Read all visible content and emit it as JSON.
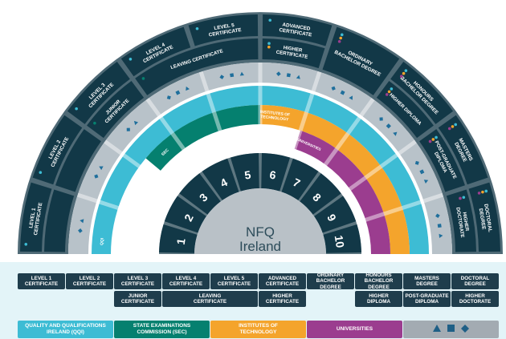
{
  "colors": {
    "dark": "#123847",
    "sep": "#4f6a76",
    "grey": "#b8c2c9",
    "disc": "#b9c1c7",
    "qqi": "#3dbcd4",
    "sec": "#05806f",
    "iot": "#f4a42c",
    "univ": "#9b3d8f",
    "symbol": "#1f6f9c",
    "panel": "#e3f4f8"
  },
  "center": {
    "title": "NFQ",
    "subtitle": "Ireland"
  },
  "levels": [
    "1",
    "2",
    "3",
    "4",
    "5",
    "6",
    "7",
    "8",
    "9",
    "10"
  ],
  "outer": [
    {
      "lines": [
        "LEVEL 1",
        "CERTIFICATE"
      ],
      "dots": [
        "#3dbcd4"
      ]
    },
    {
      "lines": [
        "LEVEL 2",
        "CERTIFICATE"
      ],
      "dots": [
        "#3dbcd4"
      ]
    },
    {
      "lines": [
        "LEVEL 3",
        "CERTIFICATE"
      ],
      "dots": [
        "#3dbcd4"
      ]
    },
    {
      "lines": [
        "LEVEL 4",
        "CERTIFICATE"
      ],
      "dots": [
        "#3dbcd4"
      ]
    },
    {
      "lines": [
        "LEVEL 5",
        "CERTIFICATE"
      ],
      "dots": [
        "#3dbcd4"
      ]
    },
    {
      "lines": [
        "ADVANCED",
        "CERTIFICATE"
      ],
      "dots": [
        "#3dbcd4"
      ]
    },
    {
      "lines": [
        "ORDINARY",
        "BACHELOR DEGREE"
      ],
      "dots": [
        "#3dbcd4",
        "#f4a42c",
        "#9b3d8f"
      ],
      "merged": true
    },
    {
      "lines": [
        "HONOURS",
        "BACHELOR DEGREE"
      ],
      "dots": [
        "#3dbcd4",
        "#f4a42c",
        "#9b3d8f"
      ]
    },
    {
      "lines": [
        "MASTERS",
        "DEGREE"
      ],
      "dots": [
        "#3dbcd4",
        "#f4a42c",
        "#9b3d8f"
      ]
    },
    {
      "lines": [
        "DOCTORAL",
        "DEGREE"
      ],
      "dots": [
        "#3dbcd4",
        "#f4a42c",
        "#9b3d8f"
      ]
    }
  ],
  "inner": [
    {
      "from": 1,
      "to": 1,
      "lines": [],
      "dots": []
    },
    {
      "from": 2,
      "to": 2,
      "lines": [],
      "dots": []
    },
    {
      "from": 3,
      "to": 3,
      "lines": [
        "JUNIOR",
        "CERTIFICATE"
      ],
      "dots": [
        "#05806f"
      ]
    },
    {
      "from": 4,
      "to": 5,
      "lines": [
        "LEAVING CERTIFICATE"
      ],
      "dots": [
        "#05806f"
      ]
    },
    {
      "from": 6,
      "to": 6,
      "lines": [
        "HIGHER",
        "CERTIFICATE"
      ],
      "dots": [
        "#3dbcd4",
        "#f4a42c"
      ]
    },
    {
      "from": 8,
      "to": 8,
      "lines": [
        "HIGHER DIPLOMA"
      ],
      "dots": [
        "#3dbcd4",
        "#f4a42c",
        "#9b3d8f"
      ]
    },
    {
      "from": 9,
      "to": 9,
      "lines": [
        "POST-GRADUATE",
        "DIPLOMA"
      ],
      "dots": [
        "#3dbcd4",
        "#f4a42c",
        "#9b3d8f"
      ]
    },
    {
      "from": 10,
      "to": 10,
      "lines": [
        "HIGHER",
        "DOCTORATE"
      ],
      "dots": [
        "#3dbcd4",
        "#9b3d8f"
      ]
    }
  ],
  "symbols": [
    [
      "triangle",
      "diamond"
    ],
    [
      "triangle",
      "diamond"
    ],
    [
      "triangle",
      "diamond"
    ],
    [
      "triangle",
      "square",
      "diamond"
    ],
    [
      "triangle",
      "square",
      "diamond"
    ],
    [
      "triangle",
      "square",
      "diamond"
    ],
    [
      "triangle",
      "square",
      "diamond"
    ],
    [
      "triangle",
      "square",
      "diamond"
    ],
    [
      "triangle",
      "square",
      "diamond"
    ],
    [
      "triangle",
      "square",
      "diamond"
    ]
  ],
  "bands": [
    {
      "name": "qqi",
      "label": "QQI",
      "from": 1,
      "to": 10,
      "color": "#3dbcd4"
    },
    {
      "name": "sec",
      "label": "SEC",
      "from": 3,
      "to": 5,
      "color": "#05806f"
    },
    {
      "name": "iot",
      "label": "INSTITUTES OF TECHNOLOGY",
      "from": 6,
      "to": 10,
      "color": "#f4a42c"
    },
    {
      "name": "univ",
      "label": "UNIVERSITIES",
      "from": 7,
      "to": 10,
      "color": "#9b3d8f"
    }
  ],
  "table": {
    "row1": [
      [
        "LEVEL 1",
        "CERTIFICATE"
      ],
      [
        "LEVEL 2",
        "CERTIFICATE"
      ],
      [
        "LEVEL 3",
        "CERTIFICATE"
      ],
      [
        "LEVEL 4",
        "CERTIFICATE"
      ],
      [
        "LEVEL 5",
        "CERTIFICATE"
      ],
      [
        "ADVANCED",
        "CERTIFICATE"
      ],
      [
        "ORDINARY",
        "BACHELOR DEGREE"
      ],
      [
        "HONOURS",
        "BACHELOR DEGREE"
      ],
      [
        "MASTERS",
        "DEGREE"
      ],
      [
        "DOCTORAL",
        "DEGREE"
      ]
    ],
    "row2": [
      {
        "col": 3,
        "span": 1,
        "lines": [
          "JUNIOR",
          "CERTIFICATE"
        ]
      },
      {
        "col": 4,
        "span": 2,
        "lines": [
          "LEAVING",
          "CERTIFICATE"
        ]
      },
      {
        "col": 6,
        "span": 1,
        "lines": [
          "HIGHER",
          "CERTIFICATE"
        ]
      },
      {
        "col": 8,
        "span": 1,
        "lines": [
          "HIGHER",
          "DIPLOMA"
        ]
      },
      {
        "col": 9,
        "span": 1,
        "lines": [
          "POST-GRADUATE",
          "DIPLOMA"
        ]
      },
      {
        "col": 10,
        "span": 1,
        "lines": [
          "HIGHER",
          "DOCTORATE"
        ]
      }
    ]
  },
  "legend": [
    {
      "name": "qqi",
      "lines": [
        "QUALITY  AND QUALIFICATIONS",
        "IRELAND (QQI)"
      ],
      "color": "#3dbcd4"
    },
    {
      "name": "sec",
      "lines": [
        "STATE EXAMINATIONS",
        "COMMISSION (SEC)"
      ],
      "color": "#05806f"
    },
    {
      "name": "iot",
      "lines": [
        "INSTITUTES OF",
        "TECHNOLOGY"
      ],
      "color": "#f4a42c"
    },
    {
      "name": "universities",
      "lines": [
        "UNIVERSITIES"
      ],
      "color": "#9b3d8f"
    }
  ],
  "legend_symbols": [
    "triangle",
    "square",
    "diamond"
  ]
}
